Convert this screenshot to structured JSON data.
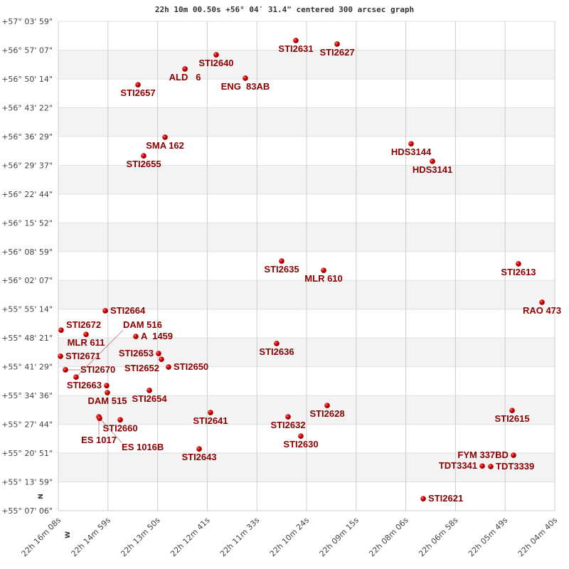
{
  "chart_data": {
    "type": "scatter",
    "title": "22h 10m 00.50s +56° 04′ 31.4\" centered 300 arcsec graph",
    "xlabel": "",
    "ylabel": "",
    "x_unit": "RA seconds after 22h (decreasing to the right)",
    "xlim": [
      968,
      280
    ],
    "ylim": [
      55.1183,
      57.0664
    ],
    "x_ticks": [
      "22h 16m 08s",
      "22h 14m 59s",
      "22h 13m 50s",
      "22h 12m 41s",
      "22h 11m 33s",
      "22h 10m 24s",
      "22h 09m 15s",
      "22h 08m 06s",
      "22h 06m 58s",
      "22h 05m 49s",
      "22h 04m 40s"
    ],
    "y_ticks": [
      "+57° 03' 59\"",
      "+56° 57' 07\"",
      "+56° 50' 14\"",
      "+56° 43' 22\"",
      "+56° 36' 29\"",
      "+56° 29' 37\"",
      "+56° 22' 44\"",
      "+56° 15' 52\"",
      "+56° 08' 59\"",
      "+56° 02' 07\"",
      "+55° 55' 14\"",
      "+55° 48' 21\"",
      "+55° 41' 29\"",
      "+55° 34' 36\"",
      "+55° 27' 44\"",
      "+55° 20' 51\"",
      "+55° 13' 59\"",
      "+55° 07' 06\""
    ],
    "grid": true,
    "alternating_bands": true,
    "direction_labels": {
      "north": "N",
      "west": "W"
    },
    "colors": {
      "marker": "#d40000",
      "label": "#8b0000",
      "band": "#f3f3f3",
      "grid": "#cccccc"
    },
    "points": [
      {
        "name": "STI2631",
        "ra_s": 638.8,
        "dec": 56.99
      },
      {
        "name": "STI2627",
        "ra_s": 581.6,
        "dec": 56.976
      },
      {
        "name": "STI2640",
        "ra_s": 749.2,
        "dec": 56.933
      },
      {
        "name": "ALD   6",
        "ra_s": 792.5,
        "dec": 56.877
      },
      {
        "name": "ENG  83AB",
        "ra_s": 708.8,
        "dec": 56.84
      },
      {
        "name": "STI2657",
        "ra_s": 857.6,
        "dec": 56.814
      },
      {
        "name": "SMA 162",
        "ra_s": 820.1,
        "dec": 56.605
      },
      {
        "name": "STI2655",
        "ra_s": 849.7,
        "dec": 56.531
      },
      {
        "name": "HDS3144",
        "ra_s": 479.1,
        "dec": 56.579
      },
      {
        "name": "HDS3141",
        "ra_s": 449.5,
        "dec": 56.509
      },
      {
        "name": "STI2635",
        "ra_s": 658.5,
        "dec": 56.112
      },
      {
        "name": "MLR 610",
        "ra_s": 600.3,
        "dec": 56.075
      },
      {
        "name": "STI2613",
        "ra_s": 330.3,
        "dec": 56.101
      },
      {
        "name": "RAO 473",
        "ra_s": 297.7,
        "dec": 55.948
      },
      {
        "name": "STI2664",
        "ra_s": 902.9,
        "dec": 55.914
      },
      {
        "name": "STI2672",
        "ra_s": 964.1,
        "dec": 55.837
      },
      {
        "name": "MLR 611",
        "ra_s": 929.6,
        "dec": 55.82
      },
      {
        "name": "A  1459",
        "ra_s": 860.6,
        "dec": 55.812
      },
      {
        "name": "STI2636",
        "ra_s": 665.4,
        "dec": 55.784
      },
      {
        "name": "STI2671",
        "ra_s": 965.0,
        "dec": 55.733
      },
      {
        "name": "STI2653",
        "ra_s": 829.0,
        "dec": 55.744
      },
      {
        "name": "STI2652",
        "ra_s": 825.1,
        "dec": 55.721
      },
      {
        "name": "STI2650",
        "ra_s": 815.2,
        "dec": 55.69
      },
      {
        "name": "STI2670",
        "ra_s": 958.1,
        "dec": 55.679
      },
      {
        "name": "DAM 516",
        "ra_s": 943.4,
        "dec": 55.65
      },
      {
        "name": "STI2663",
        "ra_s": 901.0,
        "dec": 55.616
      },
      {
        "name": "DAM 515",
        "ra_s": 900.0,
        "dec": 55.588
      },
      {
        "name": "STI2654",
        "ra_s": 841.8,
        "dec": 55.597
      },
      {
        "name": "ES 1017",
        "ra_s": 911.8,
        "dec": 55.492
      },
      {
        "name": "ES 1016B",
        "ra_s": 910.8,
        "dec": 55.486
      },
      {
        "name": "STI2660",
        "ra_s": 882.2,
        "dec": 55.48
      },
      {
        "name": "STI2641",
        "ra_s": 757.1,
        "dec": 55.509
      },
      {
        "name": "STI2632",
        "ra_s": 649.6,
        "dec": 55.492
      },
      {
        "name": "STI2628",
        "ra_s": 595.4,
        "dec": 55.537
      },
      {
        "name": "STI2630",
        "ra_s": 631.9,
        "dec": 55.415
      },
      {
        "name": "STI2615",
        "ra_s": 339.1,
        "dec": 55.517
      },
      {
        "name": "STI2643",
        "ra_s": 772.8,
        "dec": 55.364
      },
      {
        "name": "FYM 337BD",
        "ra_s": 337.2,
        "dec": 55.339
      },
      {
        "name": "TDT3341",
        "ra_s": 380.5,
        "dec": 55.296
      },
      {
        "name": "TDT3339",
        "ra_s": 368.7,
        "dec": 55.294
      },
      {
        "name": "STI2621",
        "ra_s": 462.3,
        "dec": 55.166
      }
    ]
  }
}
